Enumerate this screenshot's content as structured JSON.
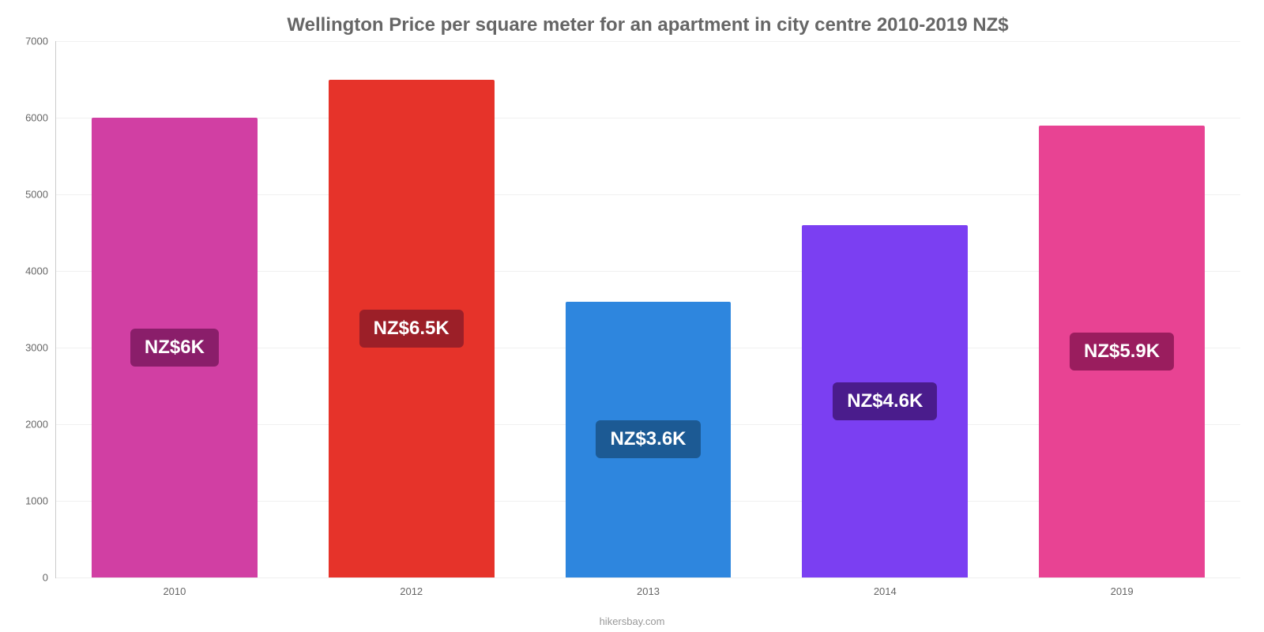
{
  "chart": {
    "type": "bar",
    "title": "Wellington Price per square meter for an apartment in city centre 2010-2019 NZ$",
    "title_fontsize": 24,
    "title_color": "#666666",
    "categories": [
      "2010",
      "2012",
      "2013",
      "2014",
      "2019"
    ],
    "values": [
      6000,
      6500,
      3600,
      4600,
      5900
    ],
    "value_labels": [
      "NZ$6K",
      "NZ$6.5K",
      "NZ$3.6K",
      "NZ$4.6K",
      "NZ$5.9K"
    ],
    "bar_colors": [
      "#d13fa3",
      "#e6332a",
      "#2e86de",
      "#7b3ff2",
      "#e84393"
    ],
    "badge_colors": [
      "#8a1e6a",
      "#9c1f28",
      "#1c5a94",
      "#4a1c8c",
      "#9a1d5e"
    ],
    "ylim": [
      0,
      7000
    ],
    "ytick_step": 1000,
    "yticks": [
      0,
      1000,
      2000,
      3000,
      4000,
      5000,
      6000,
      7000
    ],
    "background_color": "#ffffff",
    "grid_color": "#f0f0f0",
    "axis_color": "#cccccc",
    "tick_label_color": "#666666",
    "tick_label_fontsize": 13,
    "value_label_fontsize": 24,
    "bar_width": 0.7,
    "source": "hikersbay.com",
    "source_color": "#999999"
  }
}
